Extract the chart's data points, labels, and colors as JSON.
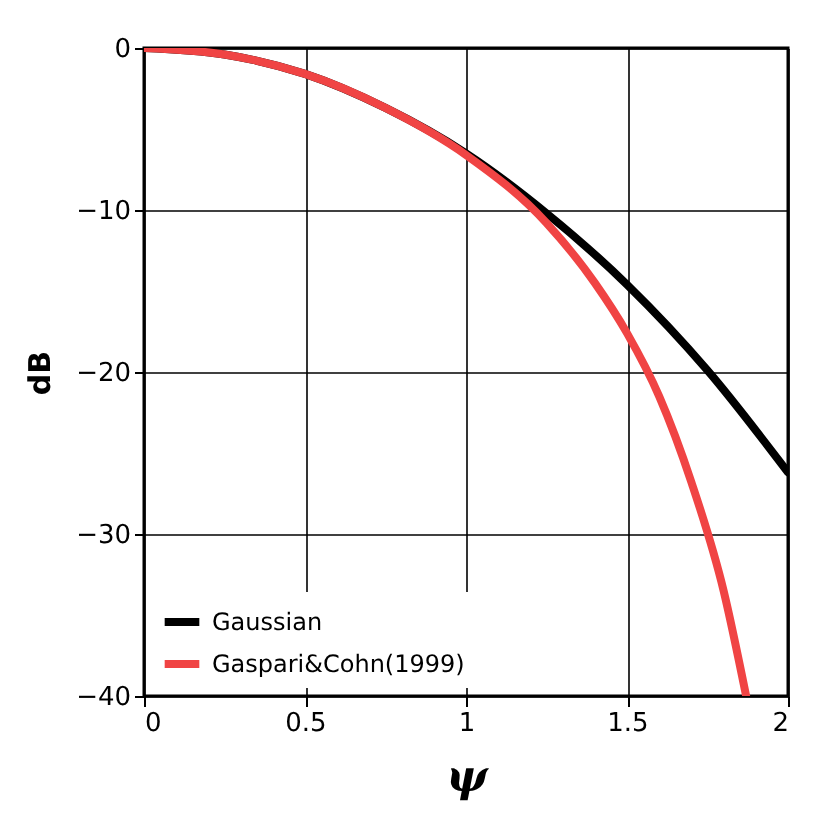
{
  "chart_data": {
    "type": "line",
    "xlabel": "ψ",
    "ylabel": "dB",
    "xlim": [
      0,
      2
    ],
    "ylim": [
      -40,
      0
    ],
    "xticks": [
      0,
      0.5,
      1,
      1.5,
      2
    ],
    "yticks": [
      -40,
      -30,
      -20,
      -10,
      0
    ],
    "grid": true,
    "legend": "bottom left",
    "line_style": "solid",
    "series": [
      {
        "name": "Gaussian",
        "color": "#000000",
        "x": [
          0,
          0.25,
          0.5,
          0.75,
          1,
          1.25,
          1.5,
          1.75,
          2
        ],
        "values": [
          0,
          -0.4,
          -1.6,
          -3.7,
          -6.5,
          -10.2,
          -14.6,
          -19.9,
          -26.2
        ]
      },
      {
        "name": "Gaspari&Cohn(1999)",
        "color": "#f04444",
        "x": [
          0,
          0.25,
          0.5,
          0.75,
          1,
          1.25,
          1.4,
          1.5,
          1.6,
          1.7,
          1.8,
          1.87
        ],
        "values": [
          0,
          -0.4,
          -1.6,
          -3.7,
          -6.6,
          -10.8,
          -14.5,
          -17.6,
          -21.5,
          -26.8,
          -33.5,
          -40
        ]
      }
    ]
  }
}
